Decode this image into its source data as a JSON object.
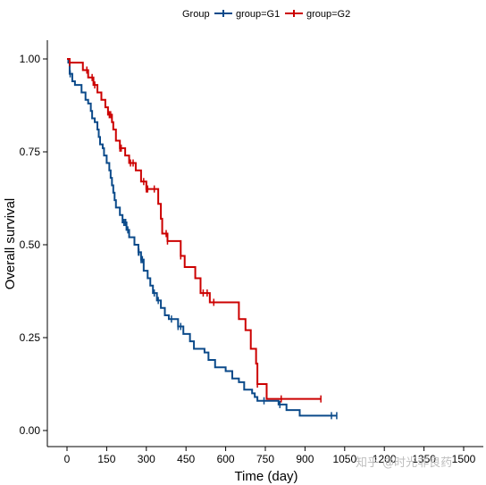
{
  "chart_data": {
    "type": "line",
    "subtype": "kaplan-meier-step",
    "legend": {
      "title": "Group",
      "position": "top",
      "entries": [
        "group=G1",
        "group=G2"
      ]
    },
    "xlabel": "Time (day)",
    "ylabel": "Overall survival",
    "xlim": [
      0,
      1560
    ],
    "ylim": [
      0,
      1.04
    ],
    "x_ticks": [
      0,
      150,
      300,
      450,
      600,
      750,
      900,
      1050,
      1200,
      1350,
      1500
    ],
    "y_ticks": [
      0.0,
      0.25,
      0.5,
      0.75,
      1.0
    ],
    "x_tick_labels": [
      "0",
      "150",
      "300",
      "450",
      "600",
      "750",
      "900",
      "1050",
      "1200",
      "1350",
      "1500"
    ],
    "y_tick_labels": [
      "0.00",
      "0.25",
      "0.50",
      "0.75",
      "1.00"
    ],
    "grid": false,
    "series": [
      {
        "name": "group=G1",
        "color": "#0b4a8a",
        "steps": [
          [
            0,
            1.0
          ],
          [
            5,
            0.99
          ],
          [
            10,
            0.96
          ],
          [
            20,
            0.94
          ],
          [
            30,
            0.93
          ],
          [
            55,
            0.91
          ],
          [
            70,
            0.89
          ],
          [
            80,
            0.88
          ],
          [
            90,
            0.86
          ],
          [
            95,
            0.84
          ],
          [
            105,
            0.83
          ],
          [
            115,
            0.81
          ],
          [
            120,
            0.79
          ],
          [
            125,
            0.77
          ],
          [
            135,
            0.76
          ],
          [
            140,
            0.74
          ],
          [
            150,
            0.72
          ],
          [
            160,
            0.7
          ],
          [
            165,
            0.68
          ],
          [
            170,
            0.66
          ],
          [
            175,
            0.64
          ],
          [
            180,
            0.62
          ],
          [
            185,
            0.6
          ],
          [
            200,
            0.58
          ],
          [
            210,
            0.56
          ],
          [
            225,
            0.54
          ],
          [
            235,
            0.52
          ],
          [
            255,
            0.5
          ],
          [
            270,
            0.48
          ],
          [
            280,
            0.46
          ],
          [
            290,
            0.43
          ],
          [
            305,
            0.41
          ],
          [
            315,
            0.39
          ],
          [
            325,
            0.37
          ],
          [
            340,
            0.35
          ],
          [
            355,
            0.33
          ],
          [
            370,
            0.31
          ],
          [
            385,
            0.3
          ],
          [
            420,
            0.28
          ],
          [
            440,
            0.26
          ],
          [
            465,
            0.24
          ],
          [
            480,
            0.22
          ],
          [
            520,
            0.21
          ],
          [
            535,
            0.19
          ],
          [
            560,
            0.17
          ],
          [
            600,
            0.16
          ],
          [
            625,
            0.14
          ],
          [
            650,
            0.13
          ],
          [
            670,
            0.11
          ],
          [
            700,
            0.1
          ],
          [
            710,
            0.09
          ],
          [
            720,
            0.08
          ],
          [
            800,
            0.07
          ],
          [
            830,
            0.055
          ],
          [
            880,
            0.04
          ],
          [
            1020,
            0.04
          ]
        ],
        "censor_times": [
          12,
          215,
          220,
          222,
          230,
          270,
          272,
          280,
          285,
          330,
          345,
          395,
          420,
          430,
          745,
          805,
          1000,
          1020
        ]
      },
      {
        "name": "group=G2",
        "color": "#cc0000",
        "steps": [
          [
            0,
            1.0
          ],
          [
            10,
            0.99
          ],
          [
            60,
            0.97
          ],
          [
            80,
            0.95
          ],
          [
            100,
            0.93
          ],
          [
            115,
            0.91
          ],
          [
            130,
            0.89
          ],
          [
            145,
            0.87
          ],
          [
            155,
            0.85
          ],
          [
            170,
            0.83
          ],
          [
            175,
            0.81
          ],
          [
            185,
            0.78
          ],
          [
            200,
            0.76
          ],
          [
            220,
            0.74
          ],
          [
            235,
            0.72
          ],
          [
            260,
            0.7
          ],
          [
            280,
            0.67
          ],
          [
            300,
            0.65
          ],
          [
            345,
            0.61
          ],
          [
            355,
            0.57
          ],
          [
            360,
            0.53
          ],
          [
            380,
            0.51
          ],
          [
            430,
            0.47
          ],
          [
            445,
            0.44
          ],
          [
            485,
            0.41
          ],
          [
            505,
            0.37
          ],
          [
            540,
            0.345
          ],
          [
            650,
            0.3
          ],
          [
            675,
            0.27
          ],
          [
            695,
            0.22
          ],
          [
            715,
            0.18
          ],
          [
            720,
            0.125
          ],
          [
            755,
            0.085
          ],
          [
            960,
            0.085
          ]
        ],
        "censor_times": [
          10,
          75,
          95,
          105,
          160,
          165,
          200,
          205,
          240,
          250,
          290,
          300,
          305,
          330,
          375,
          380,
          430,
          515,
          530,
          555,
          720,
          810,
          960
        ]
      }
    ]
  },
  "watermark_text": "知乎 @时光非良药"
}
